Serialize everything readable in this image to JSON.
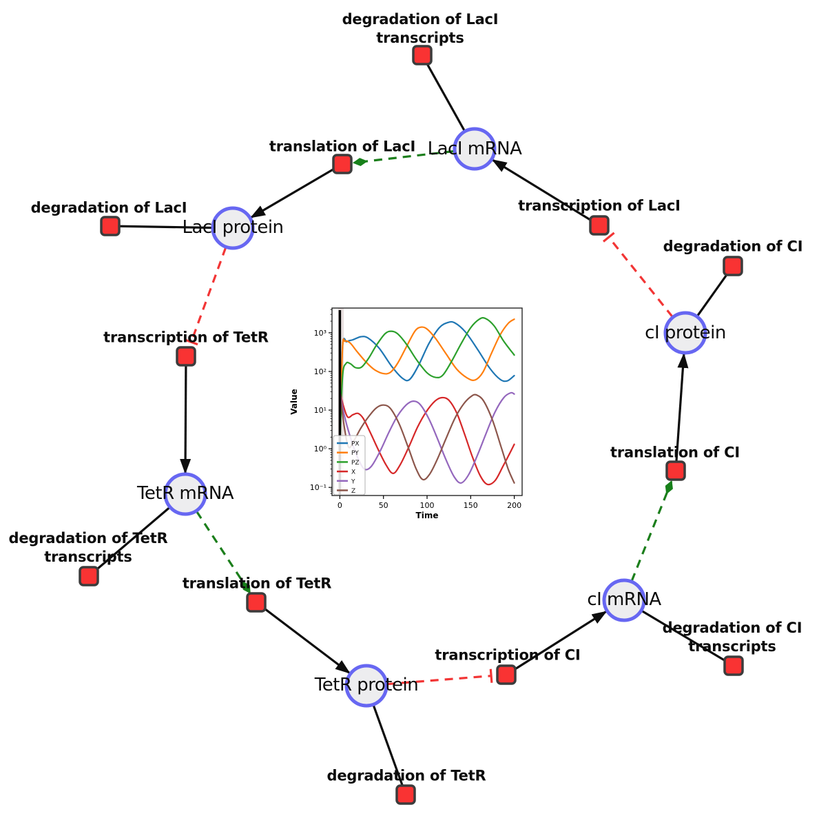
{
  "diagram": {
    "species": [
      {
        "id": "laci-mrna",
        "label": "LacI mRNA"
      },
      {
        "id": "laci-protein",
        "label": "LacI protein"
      },
      {
        "id": "ci-protein",
        "label": "cI protein"
      },
      {
        "id": "tetr-mrna",
        "label": "TetR mRNA"
      },
      {
        "id": "ci-mrna",
        "label": "cI mRNA"
      },
      {
        "id": "tetr-protein",
        "label": "TetR protein"
      }
    ],
    "reactions": [
      {
        "id": "degradation-of-laci-transcripts",
        "lines": [
          "degradation of LacI",
          "transcripts"
        ]
      },
      {
        "id": "translation-of-laci",
        "lines": [
          "translation of LacI"
        ]
      },
      {
        "id": "degradation-of-laci",
        "lines": [
          "degradation of LacI"
        ]
      },
      {
        "id": "transcription-of-laci",
        "lines": [
          "transcription of LacI"
        ]
      },
      {
        "id": "degradation-of-ci",
        "lines": [
          "degradation of CI"
        ]
      },
      {
        "id": "transcription-of-tetr",
        "lines": [
          "transcription of TetR"
        ]
      },
      {
        "id": "degradation-of-tetr-transcripts",
        "lines": [
          "degradation of TetR",
          "transcripts"
        ]
      },
      {
        "id": "translation-of-tetr",
        "lines": [
          "translation of TetR"
        ]
      },
      {
        "id": "translation-of-ci",
        "lines": [
          "translation of CI"
        ]
      },
      {
        "id": "transcription-of-ci",
        "lines": [
          "transcription of CI"
        ]
      },
      {
        "id": "degradation-of-ci-transcripts",
        "lines": [
          "degradation of CI",
          "transcripts"
        ]
      },
      {
        "id": "degradation-of-tetr",
        "lines": [
          "degradation of TetR"
        ]
      }
    ],
    "colors": {
      "species_fill": "#ededef",
      "species_border": "#6767f2",
      "reaction_fill": "#f93333",
      "reaction_border": "#3c3c3c",
      "edge": "#0d0d0d",
      "modifier_edge": "#1b7e1b",
      "inhibition_edge": "#f23535"
    }
  },
  "chart_data": {
    "type": "line",
    "title": "",
    "xlabel": "Time",
    "ylabel": "Value",
    "y_scale": "log",
    "grid": false,
    "legend_position": "lower-left",
    "xlim": [
      -9,
      209
    ],
    "ylim_exponents": [
      -1.21,
      3.64
    ],
    "x_ticks": [
      0,
      50,
      100,
      150,
      200
    ],
    "x_tick_labels": [
      "0",
      "50",
      "100",
      "150",
      "200"
    ],
    "y_tick_exponents": [
      -1,
      0,
      1,
      2,
      3
    ],
    "y_tick_labels": [
      "10⁻¹",
      "10⁰",
      "10¹",
      "10²",
      "10³"
    ],
    "event_line_x": 0,
    "event_band": [
      -2,
      4.5
    ],
    "series": [
      {
        "name": "PX",
        "color": "#1f77b4",
        "points": [
          [
            0,
            1.5
          ],
          [
            3,
            420
          ],
          [
            8,
            590
          ],
          [
            15,
            660
          ],
          [
            24,
            790
          ],
          [
            32,
            740
          ],
          [
            45,
            400
          ],
          [
            60,
            130
          ],
          [
            72,
            66
          ],
          [
            80,
            62
          ],
          [
            90,
            140
          ],
          [
            102,
            520
          ],
          [
            114,
            1350
          ],
          [
            124,
            1850
          ],
          [
            132,
            1800
          ],
          [
            144,
            1050
          ],
          [
            158,
            370
          ],
          [
            172,
            120
          ],
          [
            184,
            62
          ],
          [
            192,
            57
          ],
          [
            200,
            78
          ]
        ]
      },
      {
        "name": "PY",
        "color": "#ff7f0e",
        "points": [
          [
            0,
            1.2
          ],
          [
            3,
            380
          ],
          [
            6,
            600
          ],
          [
            12,
            540
          ],
          [
            20,
            320
          ],
          [
            30,
            175
          ],
          [
            40,
            110
          ],
          [
            50,
            88
          ],
          [
            58,
            95
          ],
          [
            66,
            160
          ],
          [
            76,
            420
          ],
          [
            86,
            1100
          ],
          [
            93,
            1400
          ],
          [
            100,
            1250
          ],
          [
            110,
            700
          ],
          [
            122,
            280
          ],
          [
            134,
            115
          ],
          [
            146,
            68
          ],
          [
            155,
            60
          ],
          [
            164,
            95
          ],
          [
            174,
            300
          ],
          [
            184,
            900
          ],
          [
            193,
            1750
          ],
          [
            200,
            2250
          ]
        ]
      },
      {
        "name": "PZ",
        "color": "#2ca02c",
        "points": [
          [
            0,
            1
          ],
          [
            3,
            70
          ],
          [
            7,
            160
          ],
          [
            12,
            158
          ],
          [
            18,
            125
          ],
          [
            25,
            130
          ],
          [
            33,
            220
          ],
          [
            42,
            480
          ],
          [
            52,
            950
          ],
          [
            59,
            1100
          ],
          [
            66,
            950
          ],
          [
            76,
            520
          ],
          [
            88,
            200
          ],
          [
            100,
            92
          ],
          [
            110,
            70
          ],
          [
            118,
            80
          ],
          [
            128,
            180
          ],
          [
            139,
            520
          ],
          [
            150,
            1350
          ],
          [
            160,
            2250
          ],
          [
            167,
            2350
          ],
          [
            177,
            1500
          ],
          [
            188,
            600
          ],
          [
            200,
            265
          ]
        ]
      },
      {
        "name": "X",
        "color": "#d62728",
        "points": [
          [
            0,
            30
          ],
          [
            4,
            13
          ],
          [
            9,
            6.6
          ],
          [
            15,
            7.6
          ],
          [
            21,
            8.2
          ],
          [
            27,
            6
          ],
          [
            35,
            2.6
          ],
          [
            44,
            0.95
          ],
          [
            53,
            0.38
          ],
          [
            61,
            0.23
          ],
          [
            69,
            0.38
          ],
          [
            79,
            1.1
          ],
          [
            89,
            3.6
          ],
          [
            99,
            9
          ],
          [
            109,
            17
          ],
          [
            117,
            21
          ],
          [
            125,
            18
          ],
          [
            134,
            8.5
          ],
          [
            143,
            2.4
          ],
          [
            152,
            0.62
          ],
          [
            161,
            0.2
          ],
          [
            169,
            0.12
          ],
          [
            178,
            0.15
          ],
          [
            187,
            0.35
          ],
          [
            194,
            0.7
          ],
          [
            200,
            1.3
          ]
        ]
      },
      {
        "name": "Y",
        "color": "#9467bd",
        "points": [
          [
            0,
            30
          ],
          [
            5,
            7.5
          ],
          [
            12,
            2
          ],
          [
            20,
            0.62
          ],
          [
            28,
            0.3
          ],
          [
            36,
            0.35
          ],
          [
            46,
            0.85
          ],
          [
            56,
            2.6
          ],
          [
            66,
            7
          ],
          [
            76,
            13.5
          ],
          [
            84,
            17
          ],
          [
            92,
            14
          ],
          [
            102,
            6
          ],
          [
            112,
            1.8
          ],
          [
            122,
            0.5
          ],
          [
            131,
            0.19
          ],
          [
            139,
            0.13
          ],
          [
            148,
            0.22
          ],
          [
            158,
            0.7
          ],
          [
            168,
            2.6
          ],
          [
            178,
            9
          ],
          [
            188,
            21
          ],
          [
            196,
            28
          ],
          [
            200,
            26
          ]
        ]
      },
      {
        "name": "Z",
        "color": "#8c564b",
        "points": [
          [
            0,
            30
          ],
          [
            5,
            3.8
          ],
          [
            10,
            1.1
          ],
          [
            16,
            1.6
          ],
          [
            24,
            3.4
          ],
          [
            33,
            6.8
          ],
          [
            42,
            11.5
          ],
          [
            50,
            13.5
          ],
          [
            58,
            11
          ],
          [
            68,
            4.4
          ],
          [
            78,
            1.15
          ],
          [
            87,
            0.32
          ],
          [
            95,
            0.16
          ],
          [
            103,
            0.22
          ],
          [
            112,
            0.55
          ],
          [
            122,
            1.9
          ],
          [
            132,
            6.2
          ],
          [
            142,
            14.5
          ],
          [
            151,
            23
          ],
          [
            157,
            24.5
          ],
          [
            165,
            17
          ],
          [
            175,
            5.5
          ],
          [
            185,
            1.1
          ],
          [
            193,
            0.3
          ],
          [
            200,
            0.13
          ]
        ]
      }
    ]
  }
}
